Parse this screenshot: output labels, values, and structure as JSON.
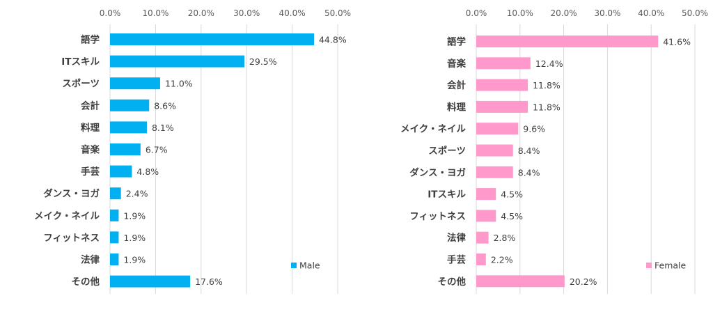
{
  "chart_data": [
    {
      "type": "bar",
      "orientation": "horizontal",
      "categories": [
        "語学",
        "ITスキル",
        "スポーツ",
        "会計",
        "料理",
        "音楽",
        "手芸",
        "ダンス・ヨガ",
        "メイク・ネイル",
        "フィットネス",
        "法律",
        "その他"
      ],
      "values": [
        44.8,
        29.5,
        11.0,
        8.6,
        8.1,
        6.7,
        4.8,
        2.4,
        1.9,
        1.9,
        1.9,
        17.6
      ],
      "value_labels": [
        "44.8%",
        "29.5%",
        "11.0%",
        "8.6%",
        "8.1%",
        "6.7%",
        "4.8%",
        "2.4%",
        "1.9%",
        "1.9%",
        "1.9%",
        "17.6%"
      ],
      "xlim": [
        0,
        50
      ],
      "x_ticks": [
        "0.0%",
        "10.0%",
        "20.0%",
        "30.0%",
        "40.0%",
        "50.0%"
      ],
      "x_axis_position": "top",
      "grid": true,
      "series": [
        {
          "name": "Male",
          "color": "#00B0F0"
        }
      ],
      "legend": "bottom-right"
    },
    {
      "type": "bar",
      "orientation": "horizontal",
      "categories": [
        "語学",
        "音楽",
        "会計",
        "料理",
        "メイク・ネイル",
        "スポーツ",
        "ダンス・ヨガ",
        "ITスキル",
        "フィットネス",
        "法律",
        "手芸",
        "その他"
      ],
      "values": [
        41.6,
        12.4,
        11.8,
        11.8,
        9.6,
        8.4,
        8.4,
        4.5,
        4.5,
        2.8,
        2.2,
        20.2
      ],
      "value_labels": [
        "41.6%",
        "12.4%",
        "11.8%",
        "11.8%",
        "9.6%",
        "8.4%",
        "8.4%",
        "4.5%",
        "4.5%",
        "2.8%",
        "2.2%",
        "20.2%"
      ],
      "xlim": [
        0,
        50
      ],
      "x_ticks": [
        "0.0%",
        "10.0%",
        "20.0%",
        "30.0%",
        "40.0%",
        "50.0%"
      ],
      "x_axis_position": "top",
      "grid": true,
      "series": [
        {
          "name": "Female",
          "color": "#FF99CC"
        }
      ],
      "legend": "bottom-right"
    }
  ]
}
